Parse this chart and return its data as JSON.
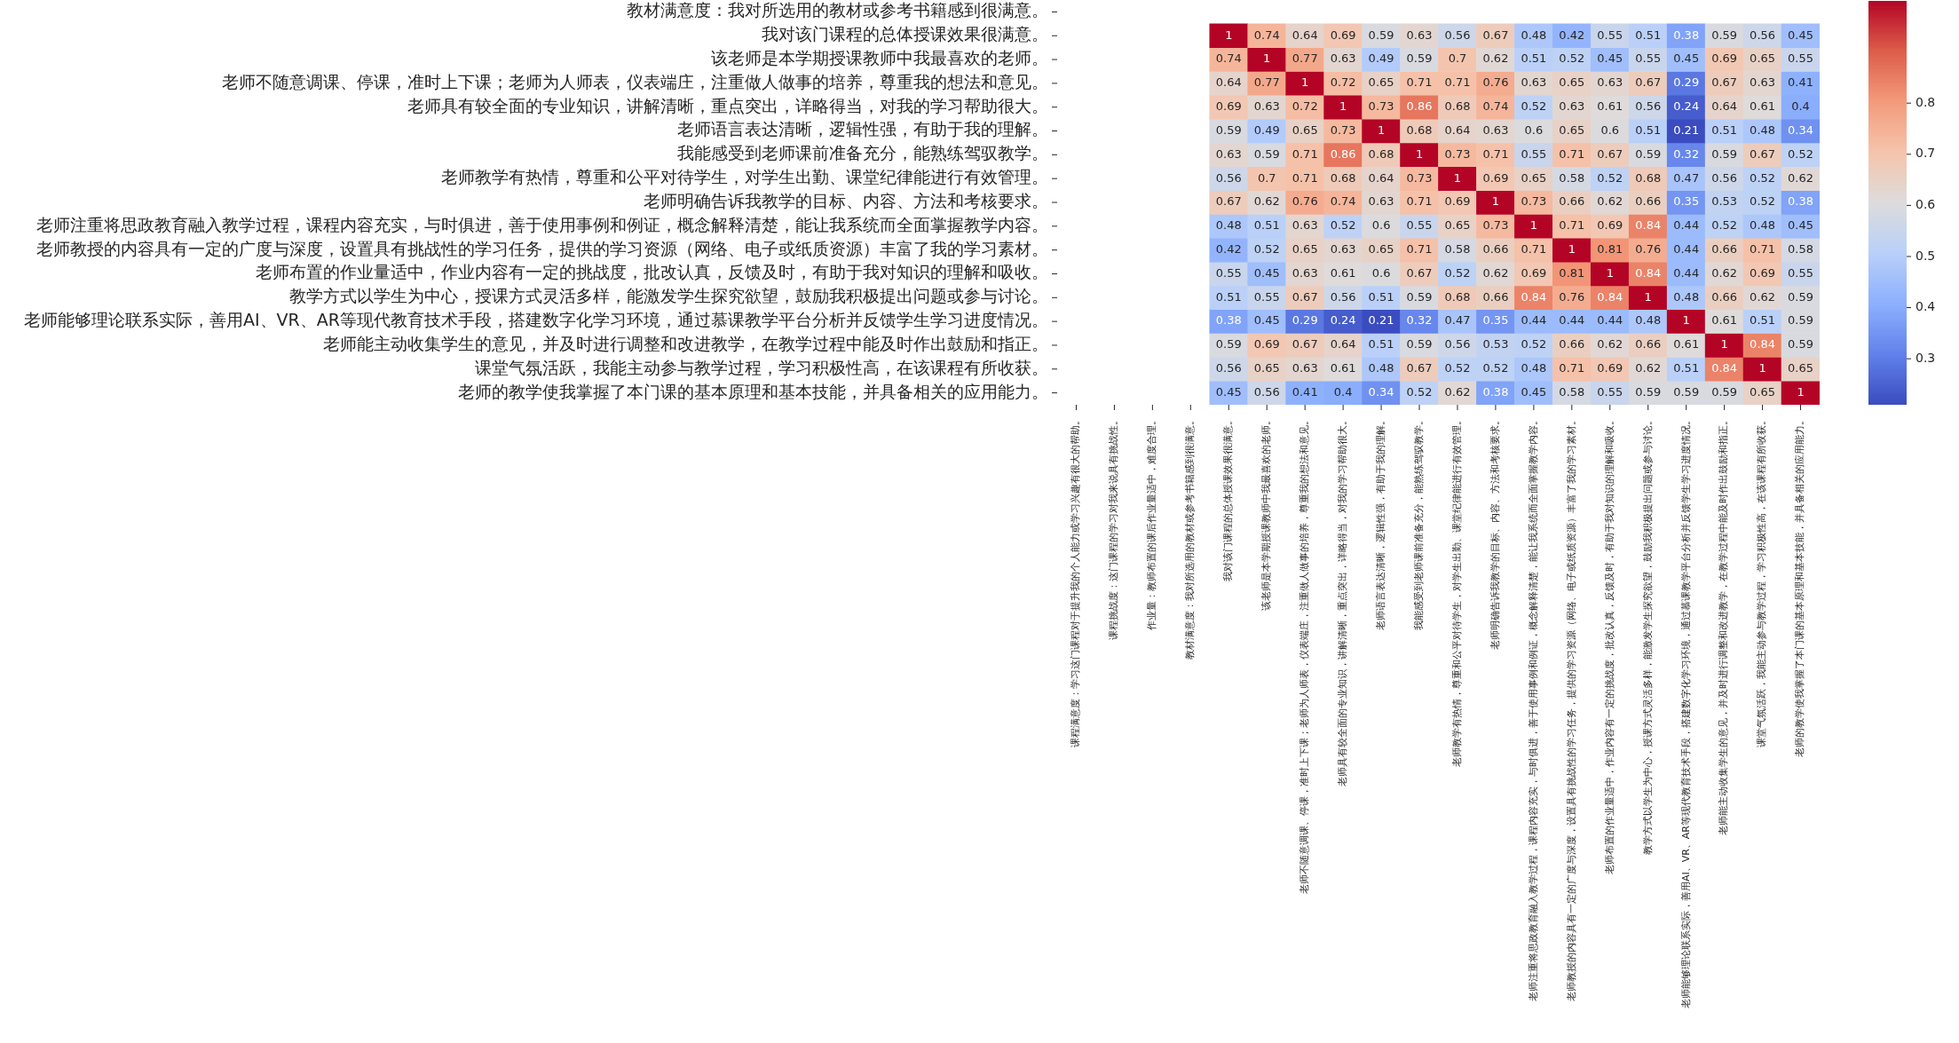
{
  "chart_data": {
    "type": "heatmap",
    "categories": [
      "课程满意度：学习这门课程对于提升我的个人能力或学习兴趣有很大的帮助。",
      "课程挑战度：这门课程的学习对我来说具有挑战性。",
      "作业量：教师布置的课后作业量适中，难度合理。",
      "教材满意度：我对所选用的教材或参考书籍感到很满意。",
      "我对该门课程的总体授课效果很满意。",
      "该老师是本学期授课教师中我最喜欢的老师。",
      "老师不随意调课、停课，准时上下课；老师为人师表，仪表端庄，注重做人做事的培养，尊重我的想法和意见。",
      "老师具有较全面的专业知识，讲解清晰，重点突出，详略得当，对我的学习帮助很大。",
      "老师语言表达清晰，逻辑性强，有助于我的理解。",
      "我能感受到老师课前准备充分，能熟练驾驭教学。",
      "老师教学有热情，尊重和公平对待学生，对学生出勤、课堂纪律能进行有效管理。",
      "老师明确告诉我教学的目标、内容、方法和考核要求。",
      "老师注重将思政教育融入教学过程，课程内容充实，与时俱进，善于使用事例和例证，概念解释清楚，能让我系统而全面掌握教学内容。",
      "老师教授的内容具有一定的广度与深度，设置具有挑战性的学习任务，提供的学习资源（网络、电子或纸质资源）丰富了我的学习素材。",
      "老师布置的作业量适中，作业内容有一定的挑战度，批改认真，反馈及时，有助于我对知识的理解和吸收。",
      "教学方式以学生为中心，授课方式灵活多样，能激发学生探究欲望，鼓励我积极提出问题或参与讨论。",
      "老师能够理论联系实际，善用AI、VR、AR等现代教育技术手段，搭建数字化学习环境，通过慕课教学平台分析并反馈学生学习进度情况。",
      "老师能主动收集学生的意见，并及时进行调整和改进教学，在教学过程中能及时作出鼓励和指正。",
      "课堂气氛活跃，我能主动参与教学过程，学习积极性高，在该课程有所收获。",
      "老师的教学使我掌握了本门课的基本原理和基本技能，并具备相关的应用能力。"
    ],
    "y_categories": [
      "教材满意度：我对所选用的教材或参考书籍感到很满意。",
      "我对该门课程的总体授课效果很满意。",
      "该老师是本学期授课教师中我最喜欢的老师。",
      "老师不随意调课、停课，准时上下课；老师为人师表，仪表端庄，注重做人做事的培养，尊重我的想法和意见。",
      "老师具有较全面的专业知识，讲解清晰，重点突出，详略得当，对我的学习帮助很大。",
      "老师语言表达清晰，逻辑性强，有助于我的理解。",
      "我能感受到老师课前准备充分，能熟练驾驭教学。",
      "老师教学有热情，尊重和公平对待学生，对学生出勤、课堂纪律能进行有效管理。",
      "老师明确告诉我教学的目标、内容、方法和考核要求。",
      "老师注重将思政教育融入教学过程，课程内容充实，与时俱进，善于使用事例和例证，概念解释清楚，能让我系统而全面掌握教学内容。",
      "老师教授的内容具有一定的广度与深度，设置具有挑战性的学习任务，提供的学习资源（网络、电子或纸质资源）丰富了我的学习素材。",
      "老师布置的作业量适中，作业内容有一定的挑战度，批改认真，反馈及时，有助于我对知识的理解和吸收。",
      "教学方式以学生为中心，授课方式灵活多样，能激发学生探究欲望，鼓励我积极提出问题或参与讨论。",
      "老师能够理论联系实际，善用AI、VR、AR等现代教育技术手段，搭建数字化学习环境，通过慕课教学平台分析并反馈学生学习进度情况。",
      "老师能主动收集学生的意见，并及时进行调整和改进教学，在教学过程中能及时作出鼓励和指正。",
      "课堂气氛活跃，我能主动参与教学过程，学习积极性高，在该课程有所收获。",
      "老师的教学使我掌握了本门课的基本原理和基本技能，并具备相关的应用能力。"
    ],
    "cells": [
      [
        null,
        null,
        null,
        null,
        null,
        null,
        null,
        null,
        null,
        null,
        null,
        null,
        null,
        null,
        null,
        null,
        null,
        null,
        null,
        null
      ],
      [
        null,
        null,
        null,
        null,
        1,
        0.74,
        0.64,
        0.69,
        0.59,
        0.63,
        0.56,
        0.67,
        0.48,
        0.42,
        0.55,
        0.51,
        0.38,
        0.59,
        0.56,
        0.45
      ],
      [
        null,
        null,
        null,
        null,
        0.74,
        1,
        0.77,
        0.63,
        0.49,
        0.59,
        0.7,
        0.62,
        0.51,
        0.52,
        0.45,
        0.55,
        0.45,
        0.69,
        0.65,
        0.55
      ],
      [
        null,
        null,
        null,
        null,
        0.64,
        0.77,
        1,
        0.72,
        0.65,
        0.71,
        0.71,
        0.76,
        0.63,
        0.65,
        0.63,
        0.67,
        0.29,
        0.67,
        0.63,
        0.41
      ],
      [
        null,
        null,
        null,
        null,
        0.69,
        0.63,
        0.72,
        1,
        0.73,
        0.86,
        0.68,
        0.74,
        0.52,
        0.63,
        0.61,
        0.56,
        0.24,
        0.64,
        0.61,
        0.4
      ],
      [
        null,
        null,
        null,
        null,
        0.59,
        0.49,
        0.65,
        0.73,
        1,
        0.68,
        0.64,
        0.63,
        0.6,
        0.65,
        0.6,
        0.51,
        0.21,
        0.51,
        0.48,
        0.34
      ],
      [
        null,
        null,
        null,
        null,
        0.63,
        0.59,
        0.71,
        0.86,
        0.68,
        1,
        0.73,
        0.71,
        0.55,
        0.71,
        0.67,
        0.59,
        0.32,
        0.59,
        0.67,
        0.52
      ],
      [
        null,
        null,
        null,
        null,
        0.56,
        0.7,
        0.71,
        0.68,
        0.64,
        0.73,
        1,
        0.69,
        0.65,
        0.58,
        0.52,
        0.68,
        0.47,
        0.56,
        0.52,
        0.62
      ],
      [
        null,
        null,
        null,
        null,
        0.67,
        0.62,
        0.76,
        0.74,
        0.63,
        0.71,
        0.69,
        1,
        0.73,
        0.66,
        0.62,
        0.66,
        0.35,
        0.53,
        0.52,
        0.38
      ],
      [
        null,
        null,
        null,
        null,
        0.48,
        0.51,
        0.63,
        0.52,
        0.6,
        0.55,
        0.65,
        0.73,
        1,
        0.71,
        0.69,
        0.84,
        0.44,
        0.52,
        0.48,
        0.45
      ],
      [
        null,
        null,
        null,
        null,
        0.42,
        0.52,
        0.65,
        0.63,
        0.65,
        0.71,
        0.58,
        0.66,
        0.71,
        1,
        0.81,
        0.76,
        0.44,
        0.66,
        0.71,
        0.58
      ],
      [
        null,
        null,
        null,
        null,
        0.55,
        0.45,
        0.63,
        0.61,
        0.6,
        0.67,
        0.52,
        0.62,
        0.69,
        0.81,
        1,
        0.84,
        0.44,
        0.62,
        0.69,
        0.55
      ],
      [
        null,
        null,
        null,
        null,
        0.51,
        0.55,
        0.67,
        0.56,
        0.51,
        0.59,
        0.68,
        0.66,
        0.84,
        0.76,
        0.84,
        1,
        0.48,
        0.66,
        0.62,
        0.59
      ],
      [
        null,
        null,
        null,
        null,
        0.38,
        0.45,
        0.29,
        0.24,
        0.21,
        0.32,
        0.47,
        0.35,
        0.44,
        0.44,
        0.44,
        0.48,
        1,
        0.61,
        0.51,
        0.59
      ],
      [
        null,
        null,
        null,
        null,
        0.59,
        0.69,
        0.67,
        0.64,
        0.51,
        0.59,
        0.56,
        0.53,
        0.52,
        0.66,
        0.62,
        0.66,
        0.61,
        1,
        0.84,
        0.59
      ],
      [
        null,
        null,
        null,
        null,
        0.56,
        0.65,
        0.63,
        0.61,
        0.48,
        0.67,
        0.52,
        0.52,
        0.48,
        0.71,
        0.69,
        0.62,
        0.51,
        0.84,
        1,
        0.65
      ],
      [
        null,
        null,
        null,
        null,
        0.45,
        0.56,
        0.41,
        0.4,
        0.34,
        0.52,
        0.62,
        0.38,
        0.45,
        0.58,
        0.55,
        0.59,
        0.59,
        0.59,
        0.65,
        1
      ]
    ],
    "clim": [
      0.21,
      1
    ],
    "cticks": [
      0.3,
      0.4,
      0.5,
      0.6,
      0.7,
      0.8
    ],
    "data_labels": true
  }
}
